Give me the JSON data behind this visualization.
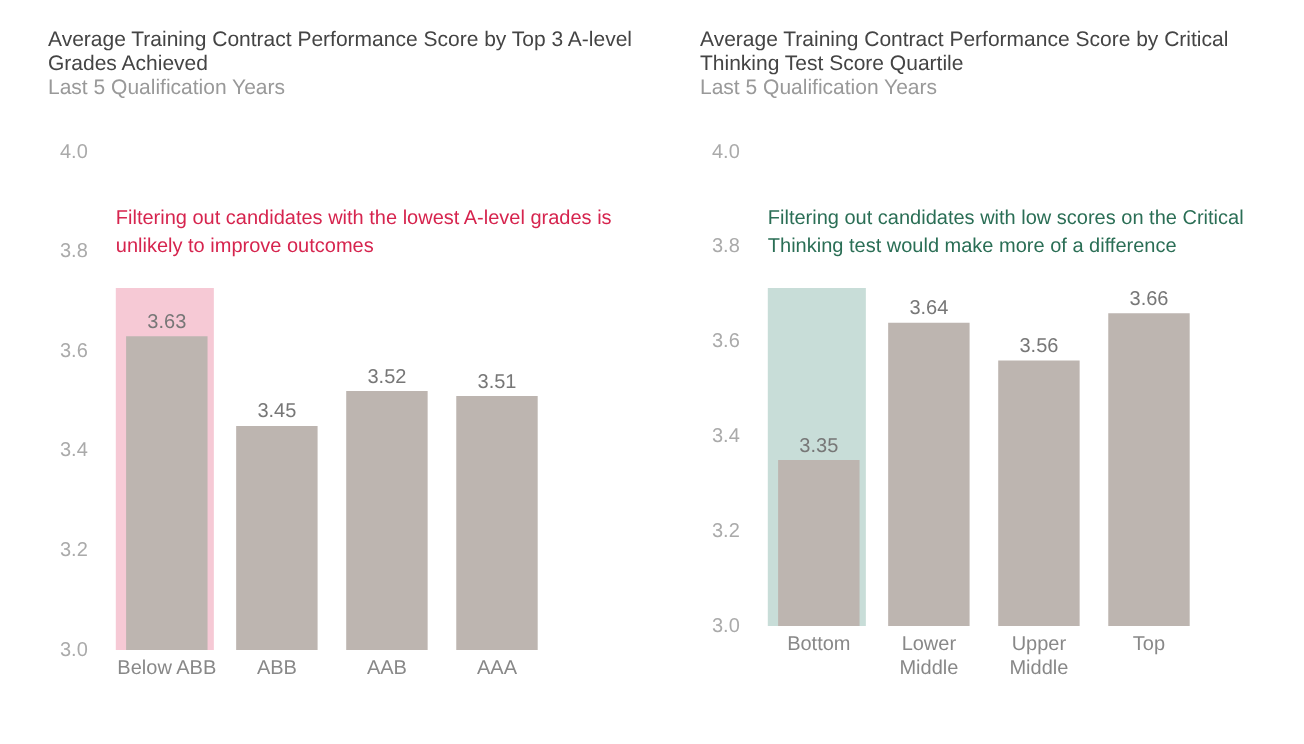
{
  "chart_data": [
    {
      "type": "bar",
      "title": "Average Training Contract Performance Score by Top 3 A-level Grades Achieved",
      "subtitle": "Last 5 Qualification Years",
      "categories": [
        "Below ABB",
        "ABB",
        "AAB",
        "AAA"
      ],
      "values": [
        3.63,
        3.45,
        3.52,
        3.51
      ],
      "color": "#bdb5b0",
      "ylim": [
        3,
        4
      ],
      "yticks": [
        {
          "value": 3,
          "label": "3.0"
        },
        {
          "value": 3.2,
          "label": "3.2"
        },
        {
          "value": 3.4,
          "label": "3.4"
        },
        {
          "value": 3.6,
          "label": "3.6"
        },
        {
          "value": 3.8,
          "label": "3.8"
        },
        {
          "value": 4,
          "label": "4.0"
        }
      ],
      "data_labels": true,
      "grid": false,
      "legend": false,
      "bands": [
        {
          "axis": "x",
          "from": "Below ABB",
          "to": "Below ABB",
          "color": "#f6c9d5"
        }
      ],
      "annotations": [
        "Filtering out candidates with the lowest A-level grades is unlikely to improve outcomes"
      ]
    },
    {
      "type": "bar",
      "title": "Average Training Contract Performance Score by Critical Thinking Test Score Quartile",
      "subtitle": "Last 5 Qualification Years",
      "categories": [
        "Bottom",
        "Lower Middle",
        "Upper Middle",
        "Top"
      ],
      "values": [
        3.35,
        3.64,
        3.56,
        3.66
      ],
      "color": "#bdb5b0",
      "ylim": [
        3,
        4
      ],
      "yticks": [
        {
          "value": 3,
          "label": "3.0"
        },
        {
          "value": 3.2,
          "label": "3.2"
        },
        {
          "value": 3.4,
          "label": "3.4"
        },
        {
          "value": 3.6,
          "label": "3.6"
        },
        {
          "value": 3.8,
          "label": "3.8"
        },
        {
          "value": 4,
          "label": "4.0"
        }
      ],
      "data_labels": true,
      "grid": false,
      "legend": false,
      "bands": [
        {
          "axis": "x",
          "from": "Bottom",
          "to": "Bottom",
          "color": "#c8ddd8"
        }
      ],
      "annotations": [
        "Filtering out candidates with low scores on the Critical Thinking test would make more of a difference"
      ]
    }
  ]
}
